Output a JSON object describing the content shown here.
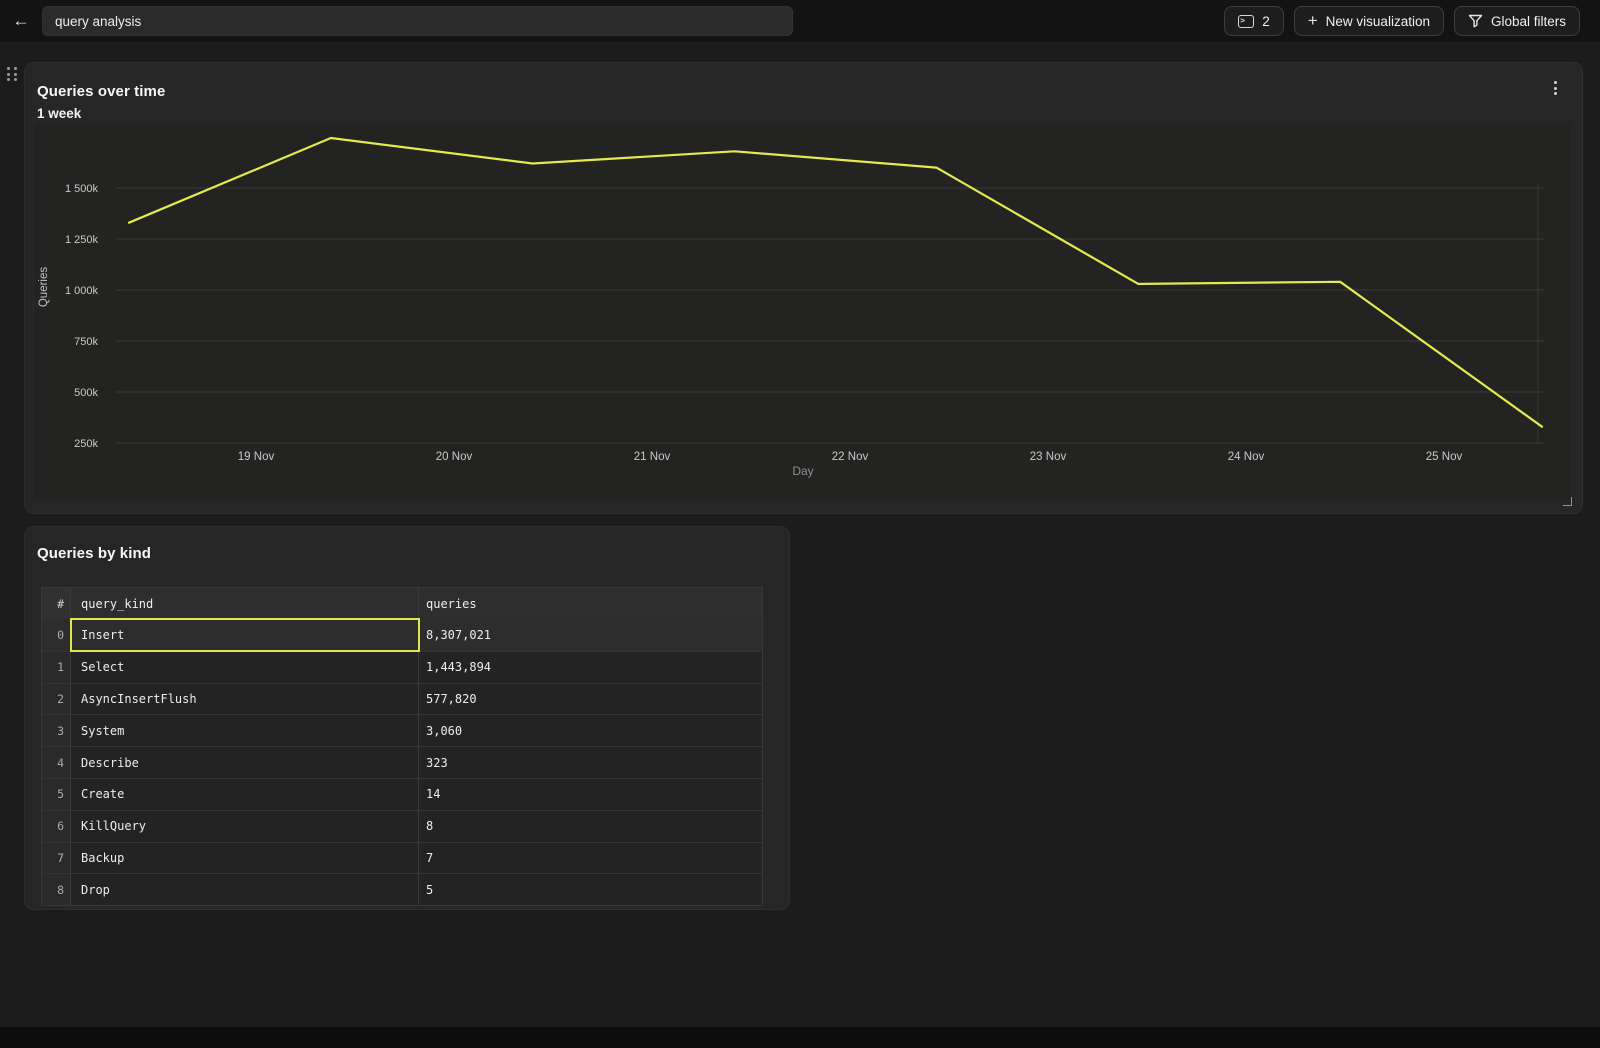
{
  "topbar": {
    "title_input_value": "query analysis",
    "buttons": {
      "console_tabs": {
        "icon": "terminal-window",
        "count": "2"
      },
      "new_visualization": {
        "icon": "plus",
        "label": "New visualization"
      },
      "global_filters": {
        "icon": "funnel",
        "label": "Global filters"
      }
    }
  },
  "icons": {
    "back": "←",
    "plus": "+",
    "kebab": "⋮",
    "console_prompt": ">"
  },
  "chart_panel": {
    "title": "Queries over time",
    "subtitle": "1 week",
    "menu_icon": "kebab-vertical-icon",
    "chart_data": {
      "type": "line",
      "title": "Queries over time",
      "subtitle": "1 week",
      "xlabel": "Day",
      "ylabel": "Queries",
      "grid": "horizontal",
      "legend": "none",
      "ylim": [
        100000,
        1850000
      ],
      "y_ticks": [
        {
          "label": "1 500k",
          "value": 1500000
        },
        {
          "label": "1 250k",
          "value": 1250000
        },
        {
          "label": "1 000k",
          "value": 1000000
        },
        {
          "label": "750k",
          "value": 750000
        },
        {
          "label": "500k",
          "value": 500000
        },
        {
          "label": "250k",
          "value": 250000
        }
      ],
      "x_tick_labels": [
        "19 Nov",
        "20 Nov",
        "21 Nov",
        "22 Nov",
        "23 Nov",
        "24 Nov",
        "25 Nov"
      ],
      "series": [
        {
          "name": "Queries",
          "color": "#e4e94f",
          "points": [
            {
              "day": "18 Nov",
              "value": 1330000
            },
            {
              "day": "19 Nov",
              "value": 1745000
            },
            {
              "day": "20 Nov",
              "value": 1620000
            },
            {
              "day": "21 Nov",
              "value": 1680000
            },
            {
              "day": "22 Nov",
              "value": 1600000
            },
            {
              "day": "23 Nov",
              "value": 1030000
            },
            {
              "day": "24 Nov",
              "value": 1040000
            },
            {
              "day": "25 Nov",
              "value": 330000
            }
          ]
        }
      ]
    }
  },
  "table_panel": {
    "title": "Queries by kind",
    "columns": [
      "#",
      "query_kind",
      "queries"
    ],
    "selection_color": "#e1e64f",
    "rows": [
      {
        "index": "0",
        "query_kind": "Insert",
        "queries": "8,307,021",
        "selected": true
      },
      {
        "index": "1",
        "query_kind": "Select",
        "queries": "1,443,894",
        "selected": false
      },
      {
        "index": "2",
        "query_kind": "AsyncInsertFlush",
        "queries": "577,820",
        "selected": false
      },
      {
        "index": "3",
        "query_kind": "System",
        "queries": "3,060",
        "selected": false
      },
      {
        "index": "4",
        "query_kind": "Describe",
        "queries": "323",
        "selected": false
      },
      {
        "index": "5",
        "query_kind": "Create",
        "queries": "14",
        "selected": false
      },
      {
        "index": "6",
        "query_kind": "KillQuery",
        "queries": "8",
        "selected": false
      },
      {
        "index": "7",
        "query_kind": "Backup",
        "queries": "7",
        "selected": false
      },
      {
        "index": "8",
        "query_kind": "Drop",
        "queries": "5",
        "selected": false
      }
    ]
  },
  "colors": {
    "accent_yellow": "#e4e94f",
    "page_bg": "#1c1c1c",
    "panel_bg": "#262626",
    "topbar_bg": "#131313"
  }
}
